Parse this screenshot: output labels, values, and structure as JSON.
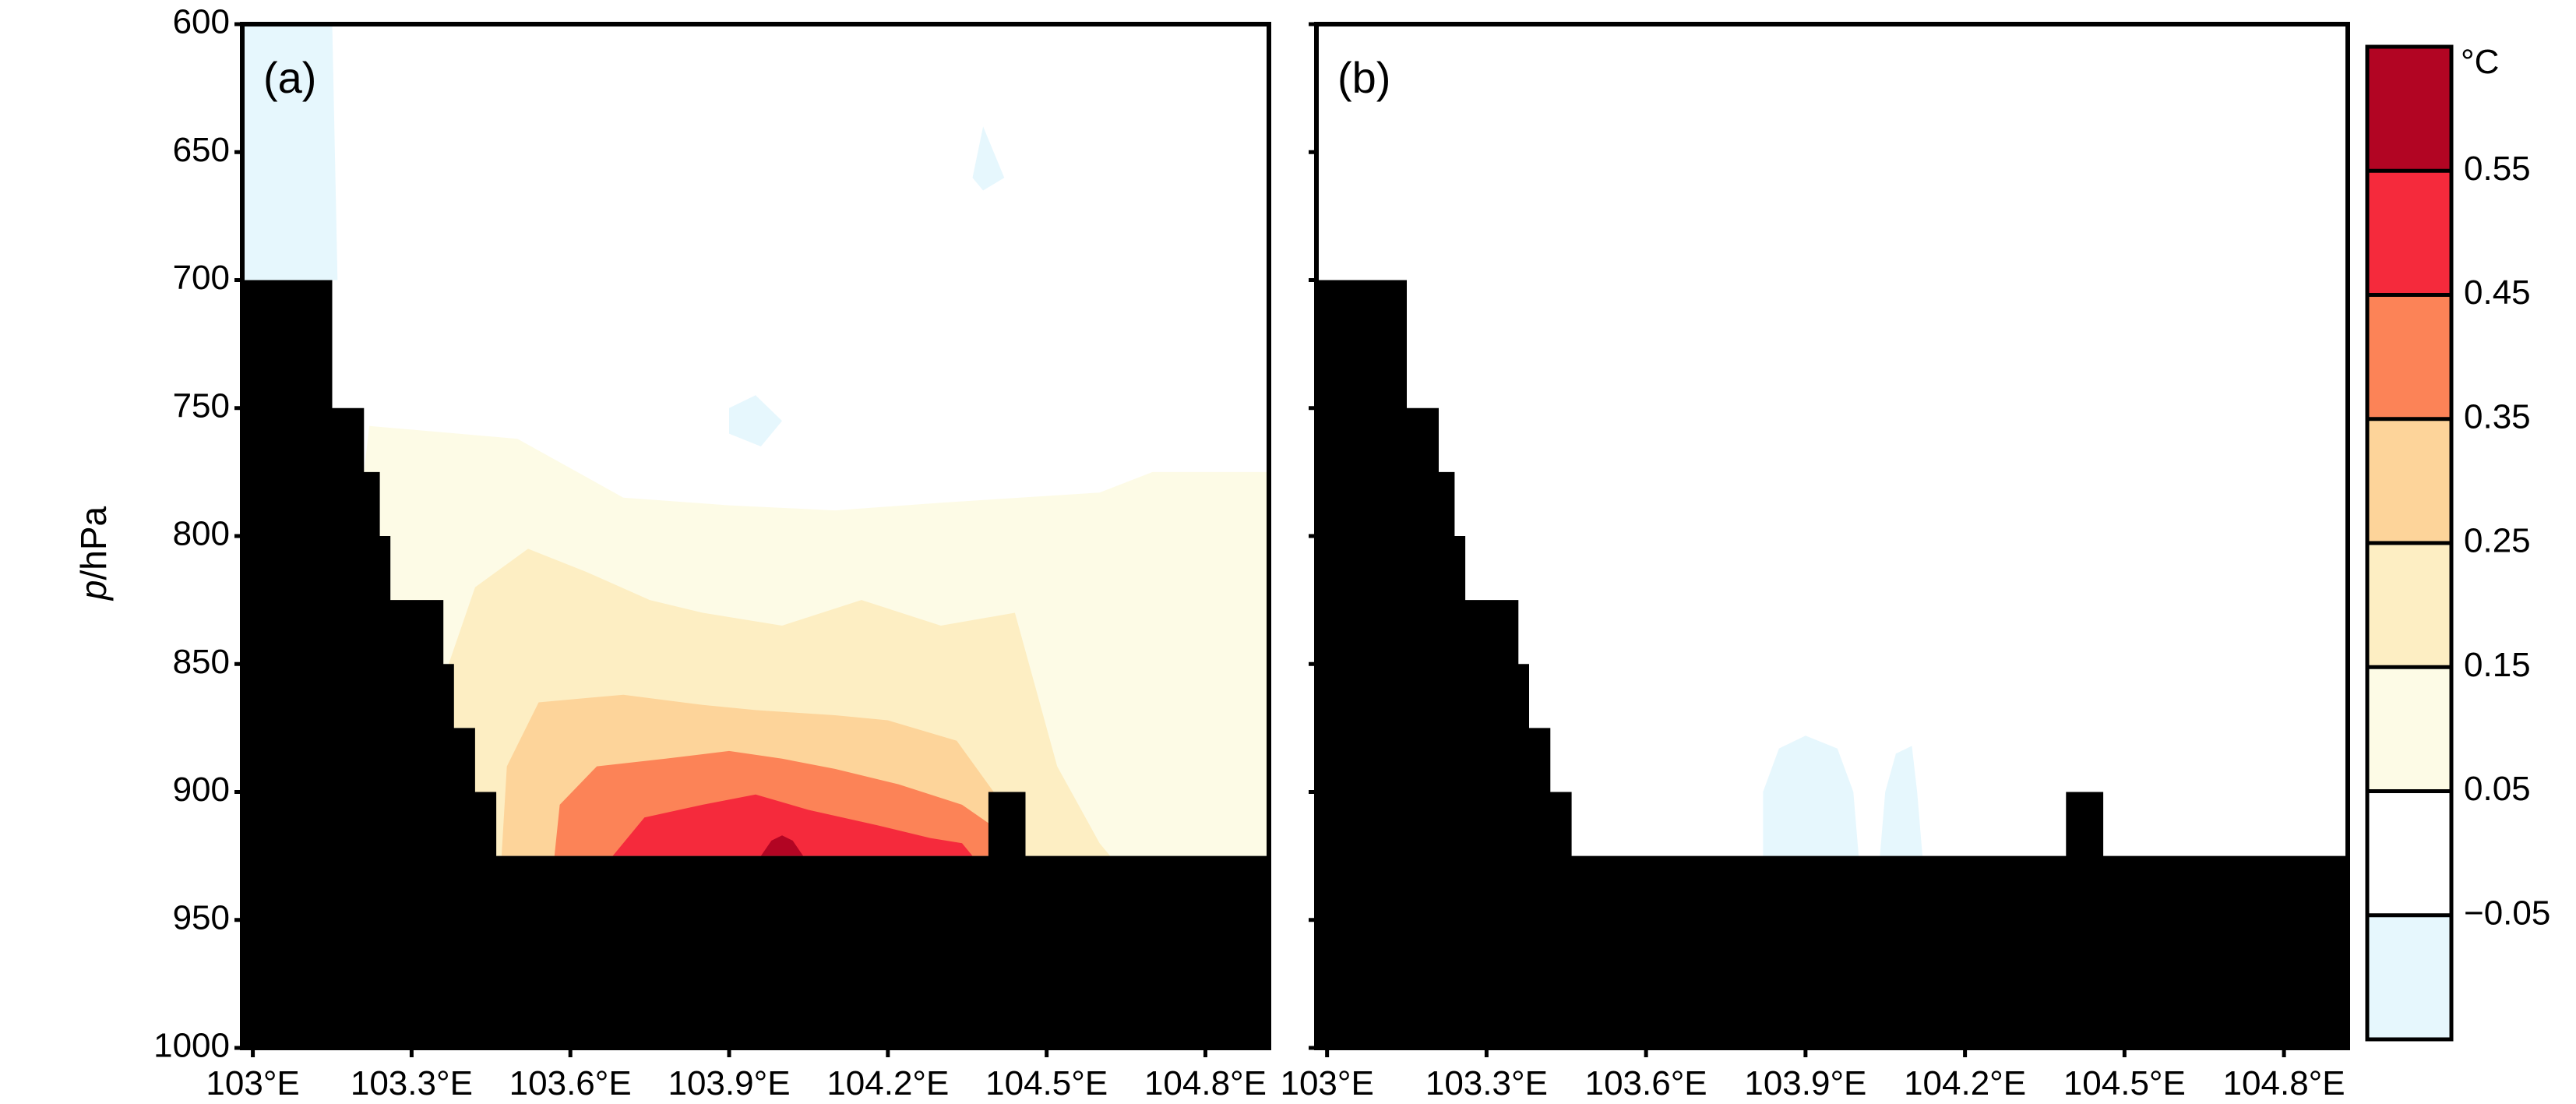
{
  "chart_data": {
    "type": "heatmap",
    "y_axis": {
      "label_italic": "p",
      "label_rest": "/hPa",
      "range": [
        600,
        1000
      ],
      "ticks": [
        600,
        650,
        700,
        750,
        800,
        850,
        900,
        950,
        1000
      ],
      "tick_labels": [
        "600",
        "650",
        "700",
        "750",
        "800",
        "850",
        "900",
        "950",
        "1000"
      ],
      "inverted": true
    },
    "x_axis": {
      "range": [
        102.98,
        104.92
      ],
      "ticks": [
        103.0,
        103.3,
        103.6,
        103.9,
        104.2,
        104.5,
        104.8
      ],
      "tick_labels": [
        "103°E",
        "103.3°E",
        "103.6°E",
        "103.9°E",
        "104.2°E",
        "104.5°E",
        "104.8°E"
      ]
    },
    "colorbar": {
      "unit": "°C",
      "boundary_labels": [
        "−0.05",
        "0.05",
        "0.15",
        "0.25",
        "0.35",
        "0.45",
        "0.55"
      ],
      "colors": [
        "#e6f7fd",
        "#ffffff",
        "#fdfbe6",
        "#fdeec3",
        "#fdd49a",
        "#fc8357",
        "#f52a3c",
        "#b20523"
      ]
    },
    "panels": [
      {
        "label": "(a)",
        "terrain_top_hPa": [
          [
            102.98,
            700
          ],
          [
            103.15,
            750
          ],
          [
            103.21,
            775
          ],
          [
            103.24,
            800
          ],
          [
            103.26,
            825
          ],
          [
            103.36,
            850
          ],
          [
            103.38,
            875
          ],
          [
            103.42,
            900
          ],
          [
            103.46,
            925
          ],
          [
            104.39,
            900
          ],
          [
            104.46,
            925
          ],
          [
            104.92,
            925
          ]
        ],
        "shading": [
          {
            "level_index": 0,
            "pts": [
              [
                102.98,
                600
              ],
              [
                103.15,
                600
              ],
              [
                103.16,
                700
              ],
              [
                102.98,
                700
              ]
            ]
          },
          {
            "level_index": 0,
            "pts": [
              [
                103.9,
                750
              ],
              [
                103.95,
                745
              ],
              [
                104.0,
                755
              ],
              [
                103.96,
                765
              ],
              [
                103.9,
                760
              ]
            ]
          },
          {
            "level_index": 0,
            "pts": [
              [
                104.38,
                640
              ],
              [
                104.4,
                650
              ],
              [
                104.42,
                660
              ],
              [
                104.38,
                665
              ],
              [
                104.36,
                660
              ]
            ]
          },
          {
            "level_index": 2,
            "pts": [
              [
                103.22,
                757
              ],
              [
                103.5,
                762
              ],
              [
                103.7,
                785
              ],
              [
                103.9,
                788
              ],
              [
                104.1,
                790
              ],
              [
                104.3,
                787
              ],
              [
                104.6,
                783
              ],
              [
                104.7,
                775
              ],
              [
                104.92,
                775
              ],
              [
                104.92,
                925
              ],
              [
                103.46,
                925
              ],
              [
                103.42,
                900
              ],
              [
                103.38,
                875
              ],
              [
                103.36,
                850
              ],
              [
                103.26,
                825
              ],
              [
                103.24,
                800
              ],
              [
                103.21,
                775
              ]
            ]
          },
          {
            "level_index": 3,
            "pts": [
              [
                103.42,
                820
              ],
              [
                103.52,
                805
              ],
              [
                103.63,
                814
              ],
              [
                103.75,
                825
              ],
              [
                103.85,
                830
              ],
              [
                104.0,
                835
              ],
              [
                104.15,
                825
              ],
              [
                104.3,
                835
              ],
              [
                104.44,
                830
              ],
              [
                104.48,
                860
              ],
              [
                104.52,
                890
              ],
              [
                104.6,
                920
              ],
              [
                104.62,
                925
              ],
              [
                103.46,
                925
              ],
              [
                103.42,
                900
              ],
              [
                103.38,
                875
              ],
              [
                103.37,
                850
              ]
            ]
          },
          {
            "level_index": 4,
            "pts": [
              [
                103.48,
                890
              ],
              [
                103.54,
                865
              ],
              [
                103.7,
                862
              ],
              [
                103.85,
                866
              ],
              [
                103.95,
                868
              ],
              [
                104.1,
                870
              ],
              [
                104.2,
                872
              ],
              [
                104.33,
                880
              ],
              [
                104.4,
                900
              ],
              [
                104.44,
                912
              ],
              [
                104.46,
                925
              ],
              [
                103.47,
                925
              ]
            ]
          },
          {
            "level_index": 5,
            "pts": [
              [
                103.57,
                925
              ],
              [
                103.58,
                905
              ],
              [
                103.65,
                890
              ],
              [
                103.78,
                887
              ],
              [
                103.9,
                884
              ],
              [
                104.0,
                887
              ],
              [
                104.1,
                891
              ],
              [
                104.22,
                897
              ],
              [
                104.34,
                905
              ],
              [
                104.41,
                915
              ],
              [
                104.42,
                925
              ]
            ]
          },
          {
            "level_index": 6,
            "pts": [
              [
                103.68,
                925
              ],
              [
                103.74,
                910
              ],
              [
                103.85,
                905
              ],
              [
                103.95,
                901
              ],
              [
                104.05,
                907
              ],
              [
                104.18,
                913
              ],
              [
                104.28,
                918
              ],
              [
                104.34,
                920
              ],
              [
                104.36,
                925
              ]
            ]
          },
          {
            "level_index": 7,
            "pts": [
              [
                103.96,
                925
              ],
              [
                103.98,
                919
              ],
              [
                104.0,
                917
              ],
              [
                104.02,
                919
              ],
              [
                104.04,
                925
              ]
            ]
          }
        ]
      },
      {
        "label": "(b)",
        "terrain_top_hPa": [
          [
            102.98,
            700
          ],
          [
            103.15,
            750
          ],
          [
            103.21,
            775
          ],
          [
            103.24,
            800
          ],
          [
            103.26,
            825
          ],
          [
            103.36,
            850
          ],
          [
            103.38,
            875
          ],
          [
            103.42,
            900
          ],
          [
            103.46,
            925
          ],
          [
            104.39,
            900
          ],
          [
            104.46,
            925
          ],
          [
            104.92,
            925
          ]
        ],
        "shading": [
          {
            "level_index": 0,
            "pts": [
              [
                103.82,
                925
              ],
              [
                103.82,
                900
              ],
              [
                103.85,
                883
              ],
              [
                103.9,
                878
              ],
              [
                103.96,
                883
              ],
              [
                103.99,
                900
              ],
              [
                104.0,
                925
              ]
            ]
          },
          {
            "level_index": 0,
            "pts": [
              [
                104.04,
                925
              ],
              [
                104.05,
                900
              ],
              [
                104.07,
                885
              ],
              [
                104.1,
                882
              ],
              [
                104.11,
                900
              ],
              [
                104.12,
                925
              ]
            ]
          }
        ]
      }
    ]
  }
}
